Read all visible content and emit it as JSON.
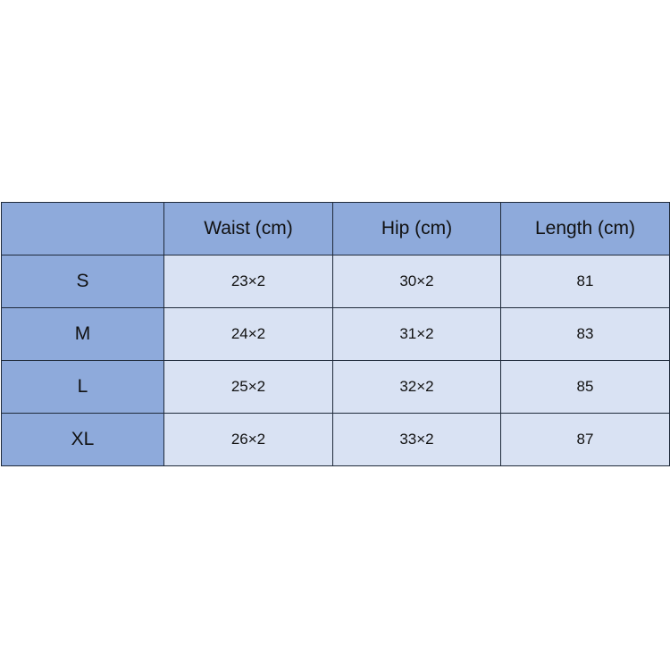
{
  "table": {
    "headers": [
      "",
      "Waist (cm)",
      "Hip (cm)",
      "Length (cm)"
    ],
    "rows": [
      [
        "S",
        "23×2",
        "30×2",
        "81"
      ],
      [
        "M",
        "24×2",
        "31×2",
        "83"
      ],
      [
        "L",
        "25×2",
        "32×2",
        "85"
      ],
      [
        "XL",
        "26×2",
        "33×2",
        "87"
      ]
    ]
  },
  "colors": {
    "header": "#8eaadb",
    "body": "#d9e2f3",
    "border": "#1f2a3a"
  }
}
